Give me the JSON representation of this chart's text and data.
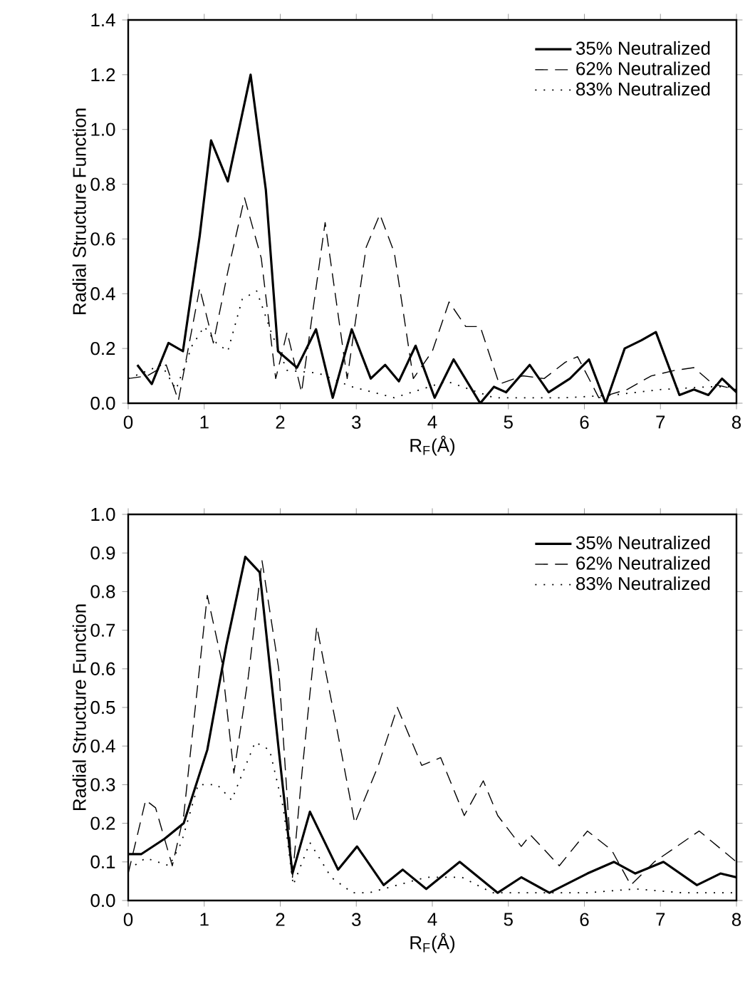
{
  "chart_data": [
    {
      "type": "line",
      "xlabel": "R$_{F}$(Å)",
      "ylabel": "Radial Structure Function",
      "xlim": [
        0,
        8
      ],
      "ylim": [
        0,
        1.4
      ],
      "xticks": [
        0,
        1,
        2,
        3,
        4,
        5,
        6,
        7,
        8
      ],
      "yticks": [
        {
          "value": 0,
          "label": "0.0"
        },
        {
          "value": 0.2,
          "label": "0.2"
        },
        {
          "value": 0.4,
          "label": "0.4"
        },
        {
          "value": 0.6,
          "label": "0.6"
        },
        {
          "value": 0.8,
          "label": "0.8"
        },
        {
          "value": 1.0,
          "label": "1.0"
        },
        {
          "value": 1.2,
          "label": "1.2"
        },
        {
          "value": 1.4,
          "label": "1.4"
        }
      ],
      "legend": "top right",
      "grid": false,
      "marker": "none",
      "series": [
        {
          "name": "35% Neutralized",
          "color": "#000000",
          "line_style": "solid",
          "x": [
            0.12,
            0.31,
            0.53,
            0.72,
            0.94,
            1.09,
            1.31,
            1.61,
            1.81,
            1.97,
            2.22,
            2.47,
            2.69,
            2.94,
            3.19,
            3.38,
            3.56,
            3.78,
            4.03,
            4.28,
            4.63,
            4.81,
            4.97,
            5.28,
            5.53,
            5.81,
            6.06,
            6.28,
            6.53,
            6.75,
            6.94,
            7.25,
            7.44,
            7.63,
            7.81,
            8.0
          ],
          "values": [
            0.14,
            0.07,
            0.22,
            0.19,
            0.61,
            0.96,
            0.81,
            1.2,
            0.78,
            0.19,
            0.13,
            0.27,
            0.02,
            0.27,
            0.09,
            0.14,
            0.08,
            0.21,
            0.02,
            0.16,
            0.0,
            0.06,
            0.04,
            0.14,
            0.04,
            0.09,
            0.16,
            0.0,
            0.2,
            0.23,
            0.26,
            0.03,
            0.05,
            0.03,
            0.09,
            0.04
          ]
        },
        {
          "name": "62% Neutralized",
          "color": "#000000",
          "line_style": "dashed",
          "x": [
            0,
            0.25,
            0.5,
            0.66,
            0.94,
            1.12,
            1.31,
            1.53,
            1.75,
            1.94,
            2.09,
            2.28,
            2.59,
            2.88,
            3.13,
            3.31,
            3.5,
            3.75,
            4.0,
            4.22,
            4.44,
            4.63,
            4.88,
            5.19,
            5.47,
            5.75,
            5.91,
            6.19,
            6.56,
            6.88,
            7.19,
            7.44,
            7.69,
            8.0
          ],
          "values": [
            0.09,
            0.1,
            0.14,
            0.01,
            0.42,
            0.22,
            0.48,
            0.75,
            0.53,
            0.09,
            0.26,
            0.04,
            0.66,
            0.09,
            0.57,
            0.69,
            0.55,
            0.09,
            0.19,
            0.37,
            0.28,
            0.28,
            0.07,
            0.1,
            0.09,
            0.15,
            0.17,
            0.02,
            0.05,
            0.1,
            0.12,
            0.13,
            0.07,
            0.05
          ]
        },
        {
          "name": "83% Neutralized",
          "color": "#000000",
          "line_style": "dotted",
          "x": [
            0,
            0.44,
            0.63,
            0.84,
            1.0,
            1.16,
            1.31,
            1.5,
            1.69,
            1.88,
            2.09,
            2.5,
            2.94,
            3.5,
            4.19,
            4.81,
            5.75,
            6.38,
            7.0,
            7.63,
            8.0
          ],
          "values": [
            0.09,
            0.14,
            0.05,
            0.21,
            0.28,
            0.22,
            0.19,
            0.38,
            0.41,
            0.26,
            0.12,
            0.11,
            0.06,
            0.02,
            0.08,
            0.02,
            0.02,
            0.03,
            0.05,
            0.06,
            0.06
          ]
        }
      ]
    },
    {
      "type": "line",
      "xlabel": "R$_{F}$(Å)",
      "ylabel": "Radial Structure Function",
      "xlim": [
        0,
        8
      ],
      "ylim": [
        0,
        1.0
      ],
      "xticks": [
        0,
        1,
        2,
        3,
        4,
        5,
        6,
        7,
        8
      ],
      "yticks": [
        {
          "value": 0,
          "label": "0.0"
        },
        {
          "value": 0.1,
          "label": "0.1"
        },
        {
          "value": 0.2,
          "label": "0.2"
        },
        {
          "value": 0.3,
          "label": "0.3"
        },
        {
          "value": 0.4,
          "label": "0.4"
        },
        {
          "value": 0.5,
          "label": "0.5"
        },
        {
          "value": 0.6,
          "label": "0.6"
        },
        {
          "value": 0.7,
          "label": "0.7"
        },
        {
          "value": 0.8,
          "label": "0.8"
        },
        {
          "value": 0.9,
          "label": "0.9"
        },
        {
          "value": 1.0,
          "label": "1.0"
        }
      ],
      "legend": "top right",
      "grid": false,
      "marker": "none",
      "series": [
        {
          "name": "35% Neutralized",
          "color": "#000000",
          "line_style": "solid",
          "x": [
            0,
            0.17,
            0.48,
            0.73,
            1.04,
            1.29,
            1.54,
            1.73,
            1.98,
            2.16,
            2.39,
            2.76,
            3.01,
            3.36,
            3.61,
            3.92,
            4.36,
            4.86,
            5.17,
            5.54,
            6.04,
            6.39,
            6.67,
            7.04,
            7.48,
            7.79,
            8.0
          ],
          "values": [
            0.12,
            0.12,
            0.16,
            0.2,
            0.39,
            0.66,
            0.89,
            0.85,
            0.39,
            0.07,
            0.23,
            0.08,
            0.14,
            0.04,
            0.08,
            0.03,
            0.1,
            0.02,
            0.06,
            0.02,
            0.07,
            0.1,
            0.07,
            0.1,
            0.04,
            0.07,
            0.06
          ]
        },
        {
          "name": "62% Neutralized",
          "color": "#000000",
          "line_style": "dashed",
          "x": [
            0,
            0.23,
            0.36,
            0.58,
            0.73,
            1.04,
            1.23,
            1.39,
            1.58,
            1.76,
            1.98,
            2.16,
            2.29,
            2.48,
            2.73,
            2.98,
            3.29,
            3.54,
            3.86,
            4.11,
            4.42,
            4.67,
            4.86,
            5.17,
            5.29,
            5.67,
            6.04,
            6.36,
            6.61,
            6.92,
            7.51,
            8.0
          ],
          "values": [
            0.07,
            0.26,
            0.24,
            0.09,
            0.22,
            0.79,
            0.62,
            0.33,
            0.58,
            0.88,
            0.6,
            0.06,
            0.34,
            0.71,
            0.46,
            0.2,
            0.35,
            0.5,
            0.35,
            0.37,
            0.22,
            0.31,
            0.22,
            0.14,
            0.17,
            0.09,
            0.18,
            0.13,
            0.04,
            0.1,
            0.18,
            0.1
          ]
        },
        {
          "name": "83% Neutralized",
          "color": "#000000",
          "line_style": "dotted",
          "x": [
            0,
            0.23,
            0.54,
            0.7,
            0.92,
            1.17,
            1.36,
            1.67,
            1.86,
            2.04,
            2.17,
            2.39,
            2.67,
            2.95,
            3.17,
            3.54,
            3.92,
            4.39,
            4.79,
            5.42,
            6.04,
            6.67,
            7.29,
            8.0
          ],
          "values": [
            0.08,
            0.11,
            0.09,
            0.15,
            0.3,
            0.3,
            0.26,
            0.41,
            0.39,
            0.24,
            0.04,
            0.15,
            0.06,
            0.02,
            0.02,
            0.04,
            0.06,
            0.06,
            0.02,
            0.02,
            0.02,
            0.03,
            0.02,
            0.02
          ]
        }
      ]
    }
  ]
}
